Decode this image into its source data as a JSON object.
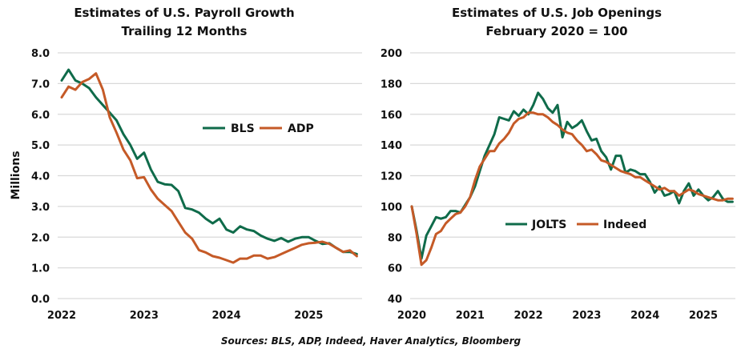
{
  "source_note": "Sources: BLS, ADP, Indeed, Haver Analytics, Bloomberg",
  "colors": {
    "green": "#0f6b4a",
    "orange": "#c55a27",
    "grid": "#d9d9d9"
  },
  "chart_data": [
    {
      "type": "line",
      "title": "Estimates of U.S. Payroll Growth",
      "subtitle": "Trailing 12 Months",
      "xlabel": "",
      "ylabel": "Millions",
      "ylim": [
        0,
        8
      ],
      "yticks": [
        "0.0",
        "1.0",
        "2.0",
        "3.0",
        "4.0",
        "5.0",
        "6.0",
        "7.0",
        "8.0"
      ],
      "ytick_values": [
        0,
        1,
        2,
        3,
        4,
        5,
        6,
        7,
        8
      ],
      "xticks": [
        "2022",
        "2023",
        "2024",
        "2025"
      ],
      "xtick_values": [
        2022,
        2023,
        2024,
        2025
      ],
      "x_start": 2022.0,
      "x_step_months": 1,
      "xlim": [
        2022.0,
        2025.75
      ],
      "grid": true,
      "legend_position": "center-right",
      "series": [
        {
          "name": "BLS",
          "color": "#0f6b4a",
          "values": [
            7.1,
            7.45,
            7.1,
            7.0,
            6.85,
            6.55,
            6.3,
            6.05,
            5.8,
            5.35,
            5.0,
            4.55,
            4.75,
            4.2,
            3.8,
            3.72,
            3.7,
            3.5,
            2.95,
            2.9,
            2.8,
            2.6,
            2.45,
            2.6,
            2.25,
            2.15,
            2.35,
            2.25,
            2.2,
            2.05,
            1.95,
            1.88,
            1.97,
            1.85,
            1.95,
            2.0,
            2.0,
            1.88,
            1.78,
            1.8,
            1.65,
            1.52,
            1.52,
            1.45
          ]
        },
        {
          "name": "ADP",
          "color": "#c55a27",
          "values": [
            6.55,
            6.9,
            6.8,
            7.05,
            7.15,
            7.33,
            6.8,
            5.9,
            5.4,
            4.85,
            4.5,
            3.92,
            3.95,
            3.55,
            3.25,
            3.05,
            2.85,
            2.5,
            2.15,
            1.95,
            1.58,
            1.5,
            1.38,
            1.33,
            1.25,
            1.17,
            1.3,
            1.3,
            1.4,
            1.4,
            1.3,
            1.35,
            1.45,
            1.55,
            1.65,
            1.75,
            1.8,
            1.82,
            1.85,
            1.78,
            1.65,
            1.52,
            1.57,
            1.38
          ]
        }
      ]
    },
    {
      "type": "line",
      "title": "Estimates of U.S. Job Openings",
      "subtitle": "February 2020 = 100",
      "xlabel": "",
      "ylabel": "",
      "ylim": [
        40,
        200
      ],
      "yticks": [
        "40",
        "60",
        "80",
        "100",
        "120",
        "140",
        "160",
        "180",
        "200"
      ],
      "ytick_values": [
        40,
        60,
        80,
        100,
        120,
        140,
        160,
        180,
        200
      ],
      "xticks": [
        "2020",
        "2021",
        "2022",
        "2023",
        "2024",
        "2025"
      ],
      "xtick_values": [
        2020,
        2021,
        2022,
        2023,
        2024,
        2025
      ],
      "x_start": 2020.0,
      "x_step_months": 1,
      "xlim": [
        2020.0,
        2025.6
      ],
      "grid": true,
      "legend_position": "lower-center",
      "series": [
        {
          "name": "JOLTS",
          "color": "#0f6b4a",
          "values": [
            100,
            84,
            66,
            81,
            87,
            93,
            92,
            93,
            97,
            97,
            96,
            101,
            106,
            113,
            123,
            133,
            140,
            147,
            158,
            157,
            156,
            162,
            159,
            163,
            160,
            166,
            174,
            170,
            164,
            161,
            166,
            145,
            155,
            151,
            153,
            156,
            149,
            143,
            144,
            136,
            132,
            124,
            133,
            133,
            122,
            124,
            123,
            121,
            121,
            116,
            109,
            113,
            107,
            108,
            110,
            102,
            110,
            115,
            107,
            111,
            107,
            104,
            106,
            110,
            105,
            103,
            103
          ]
        },
        {
          "name": "Indeed",
          "color": "#c55a27",
          "values": [
            100,
            82,
            62,
            65,
            73,
            82,
            84,
            89,
            92,
            95,
            96,
            100,
            106,
            117,
            126,
            131,
            136,
            136,
            141,
            144,
            148,
            154,
            157,
            158,
            161,
            161,
            160,
            160,
            158,
            155,
            153,
            150,
            148,
            147,
            143,
            140,
            136,
            137,
            134,
            130,
            129,
            127,
            125,
            123,
            122,
            121,
            119,
            119,
            117,
            115,
            113,
            111,
            112,
            110,
            110,
            107,
            109,
            111,
            110,
            108,
            107,
            106,
            105,
            104,
            104,
            105,
            105
          ]
        }
      ]
    }
  ]
}
